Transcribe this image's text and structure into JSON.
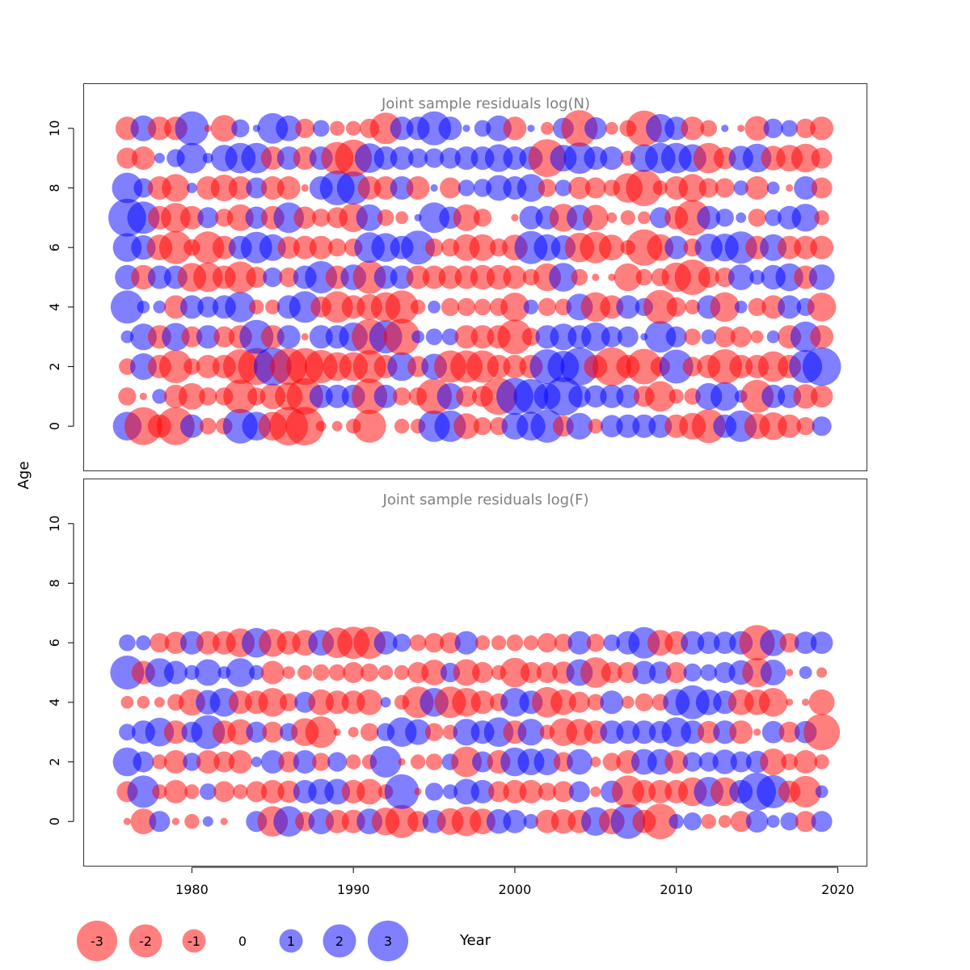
{
  "chart_data": {
    "type": "scatter",
    "xlabel": "Year",
    "ylabel": "Age",
    "colors": {
      "negative": "#ff0000",
      "positive": "#0000ff",
      "opacity": 0.5
    },
    "panels": [
      {
        "title": "Joint sample residuals log(N)",
        "xlim": [
          1973.3,
          2021.8
        ],
        "ylim": [
          -1.5,
          11.5
        ],
        "x_ticks": [],
        "y_ticks": [
          0,
          2,
          4,
          6,
          8,
          10
        ],
        "x": [
          1976,
          1977,
          1978,
          1979,
          1980,
          1981,
          1982,
          1983,
          1984,
          1985,
          1986,
          1987,
          1988,
          1989,
          1990,
          1991,
          1992,
          1993,
          1994,
          1995,
          1996,
          1997,
          1998,
          1999,
          2000,
          2001,
          2002,
          2003,
          2004,
          2005,
          2006,
          2007,
          2008,
          2009,
          2010,
          2011,
          2012,
          2013,
          2014,
          2015,
          2016,
          2017,
          2018,
          2019
        ],
        "ages": [
          0,
          1,
          2,
          3,
          4,
          5,
          6,
          7,
          8,
          9,
          10
        ],
        "residuals": [
          [
            1.5,
            -2.6,
            -1.0,
            -2.6,
            1.0,
            -0.5,
            -0.5,
            2.2,
            1.5,
            -1.5,
            -2.7,
            -2.7,
            -0.2,
            -0.2,
            -0.4,
            -2.0,
            0.0,
            -0.4,
            -0.4,
            1.8,
            1.8,
            -1.2,
            -0.6,
            -0.6,
            1.3,
            1.5,
            2.0,
            -0.8,
            1.3,
            -0.4,
            0.9,
            1.0,
            1.0,
            1.0,
            -1.0,
            -1.3,
            -2.1,
            1.0,
            1.8,
            -1.2,
            -1.4,
            -1.0,
            -0.6,
            0.7
          ],
          [
            -0.6,
            -0.1,
            0.4,
            -1.0,
            -1.3,
            -0.6,
            -0.6,
            -2.1,
            -0.6,
            -1.2,
            -1.4,
            -2.4,
            1.0,
            1.0,
            1.0,
            -2.3,
            1.0,
            -0.6,
            -0.6,
            -2.3,
            1.3,
            -0.8,
            -0.8,
            -2.5,
            2.5,
            2.2,
            1.3,
            2.7,
            0.9,
            0.9,
            1.0,
            1.0,
            -0.8,
            -1.7,
            -0.4,
            -0.5,
            1.3,
            1.5,
            0.3,
            -2.0,
            1.0,
            1.0,
            -1.1,
            -0.9
          ],
          [
            -0.5,
            1.3,
            -1.0,
            -2.0,
            -0.5,
            -1.0,
            -1.0,
            -2.2,
            -2.5,
            2.6,
            -2.5,
            -2.5,
            -2.0,
            -1.5,
            -1.5,
            -2.0,
            -1.0,
            1.5,
            -0.8,
            1.2,
            -1.9,
            -1.9,
            -1.9,
            -1.0,
            -1.0,
            -1.0,
            2.2,
            1.8,
            2.6,
            -1.0,
            -2.7,
            -1.0,
            -2.3,
            -0.7,
            2.1,
            -0.7,
            -1.0,
            -2.2,
            -1.0,
            -1.0,
            -1.7,
            -1.0,
            2.0,
            2.7
          ],
          [
            0.3,
            1.3,
            -1.0,
            1.4,
            -0.8,
            1.0,
            -0.8,
            -1.0,
            2.1,
            -1.0,
            1.0,
            -0.1,
            1.0,
            1.0,
            1.5,
            -2.3,
            2.0,
            -2.4,
            0.3,
            0.5,
            0.5,
            -1.0,
            -1.0,
            -1.0,
            -2.2,
            -0.6,
            1.0,
            1.3,
            1.0,
            1.5,
            0.8,
            0.8,
            0.1,
            1.8,
            0.8,
            -0.5,
            0.4,
            -0.8,
            -0.8,
            -0.3,
            0.3,
            -1.0,
            1.7,
            -1.0
          ],
          [
            2.0,
            0.3,
            0.3,
            -1.0,
            1.0,
            0.8,
            1.0,
            1.7,
            -0.4,
            -0.4,
            1.0,
            1.8,
            -0.8,
            -1.8,
            -1.0,
            -1.2,
            -1.6,
            -2.0,
            -0.4,
            0.3,
            -0.6,
            -0.6,
            -0.5,
            -0.6,
            -1.5,
            0.4,
            -0.6,
            -0.5,
            1.3,
            -1.6,
            -1.0,
            1.0,
            0.6,
            -2.1,
            -0.7,
            -0.4,
            1.0,
            -1.6,
            0.3,
            -0.6,
            -1.0,
            1.0,
            0.6,
            -1.5
          ],
          [
            1.1,
            -1.1,
            1.0,
            1.0,
            -1.5,
            -1.6,
            -1.0,
            -1.8,
            -0.8,
            0.7,
            -0.7,
            1.0,
            1.9,
            -1.0,
            1.2,
            -2.0,
            1.0,
            1.0,
            -1.0,
            -1.0,
            -1.0,
            -1.0,
            -1.1,
            -1.1,
            -1.0,
            -0.5,
            -1.4,
            1.5,
            -0.5,
            -0.1,
            -0.1,
            -1.4,
            -0.5,
            -0.6,
            -1.6,
            -2.3,
            -0.8,
            -0.7,
            1.2,
            0.4,
            1.1,
            1.4,
            -1.0,
            1.2
          ],
          [
            1.5,
            1.1,
            -1.2,
            -2.0,
            -0.5,
            -1.9,
            -1.0,
            1.0,
            1.8,
            1.3,
            -0.9,
            -1.0,
            -1.0,
            -0.6,
            -0.6,
            1.7,
            1.5,
            1.0,
            2.1,
            -0.6,
            -0.6,
            -1.3,
            -1.3,
            -0.6,
            -1.2,
            2.0,
            1.3,
            1.1,
            -1.6,
            -1.8,
            -1.2,
            -0.4,
            -2.4,
            -1.3,
            1.0,
            -0.6,
            1.4,
            1.4,
            1.9,
            -1.0,
            1.3,
            -1.0,
            -1.0,
            -1.0
          ],
          [
            2.6,
            1.9,
            -1.0,
            -1.6,
            -1.0,
            0.8,
            -0.6,
            -1.3,
            0.9,
            -1.0,
            1.7,
            -0.9,
            -0.6,
            -0.8,
            -1.5,
            1.3,
            -0.5,
            -0.3,
            0.1,
            1.7,
            0.9,
            -1.3,
            -0.6,
            0.0,
            -0.1,
            1.0,
            1.0,
            -1.4,
            1.2,
            -1.2,
            -0.2,
            -0.4,
            -0.3,
            0.8,
            -1.0,
            -2.3,
            1.0,
            0.6,
            0.2,
            -0.6,
            0.5,
            1.0,
            1.4,
            -0.4
          ],
          [
            1.7,
            0.7,
            -1.0,
            -1.4,
            0.2,
            -1.0,
            -1.3,
            -1.0,
            0.8,
            -1.0,
            -1.0,
            -0.1,
            1.0,
            2.2,
            2.0,
            -1.0,
            -1.0,
            1.0,
            -1.0,
            0.1,
            -0.8,
            0.5,
            0.6,
            1.2,
            1.0,
            1.4,
            -0.6,
            0.5,
            -0.9,
            -0.8,
            -0.5,
            -1.6,
            -2.4,
            -0.4,
            -1.0,
            -1.4,
            -0.7,
            -0.7,
            0.4,
            -1.0,
            0.3,
            -0.1,
            1.0,
            -0.8
          ],
          [
            -0.8,
            -1.0,
            0.2,
            0.6,
            1.7,
            0.2,
            1.3,
            1.7,
            1.7,
            -1.0,
            1.0,
            -1.0,
            1.0,
            -1.9,
            -2.5,
            1.6,
            1.0,
            1.0,
            0.7,
            0.7,
            0.8,
            1.0,
            1.0,
            1.4,
            1.0,
            1.0,
            -2.6,
            1.3,
            1.8,
            1.0,
            1.0,
            -0.4,
            1.4,
            1.7,
            1.7,
            1.4,
            -1.7,
            -0.9,
            1.1,
            1.5,
            -1.1,
            -1.3,
            -1.5,
            -0.8
          ],
          [
            -1.0,
            1.2,
            -1.0,
            -1.0,
            2.1,
            -0.1,
            -1.3,
            0.6,
            0.1,
            1.7,
            1.2,
            -0.7,
            0.5,
            -0.4,
            -0.4,
            -0.7,
            -1.8,
            1.0,
            1.0,
            2.1,
            1.0,
            0.1,
            0.5,
            1.2,
            -1.0,
            0.1,
            -0.3,
            0.8,
            -2.4,
            0.9,
            -0.3,
            -0.5,
            -2.3,
            1.5,
            1.0,
            -1.0,
            -0.5,
            0.1,
            -0.1,
            -1.1,
            0.7,
            0.5,
            -0.7,
            -1.0
          ]
        ]
      },
      {
        "title": "Joint sample residuals log(F)",
        "xlim": [
          1973.3,
          2021.8
        ],
        "ylim": [
          -1.5,
          11.5
        ],
        "x_ticks": [
          1980,
          1990,
          2000,
          2010,
          2020
        ],
        "y_ticks": [
          0,
          2,
          4,
          6,
          8,
          10
        ],
        "x": [
          1976,
          1977,
          1978,
          1979,
          1980,
          1981,
          1982,
          1983,
          1984,
          1985,
          1986,
          1987,
          1988,
          1989,
          1990,
          1991,
          1992,
          1993,
          1994,
          1995,
          1996,
          1997,
          1998,
          1999,
          2000,
          2001,
          2002,
          2003,
          2004,
          2005,
          2006,
          2007,
          2008,
          2009,
          2010,
          2011,
          2012,
          2013,
          2014,
          2015,
          2016,
          2017,
          2018,
          2019
        ],
        "ages": [
          0,
          1,
          2,
          3,
          4,
          5,
          6
        ],
        "residuals": [
          [
            -0.1,
            -1.2,
            0.8,
            -0.1,
            -0.4,
            0.2,
            -0.1,
            0.0,
            0.8,
            -1.7,
            1.7,
            -0.7,
            1.2,
            -1.0,
            -1.0,
            1.2,
            -1.4,
            -2.0,
            -0.8,
            1.0,
            -1.3,
            -1.6,
            -1.2,
            1.1,
            1.0,
            0.4,
            -1.0,
            -1.1,
            -1.0,
            1.5,
            -1.2,
            2.2,
            -1.0,
            -2.3,
            0.4,
            0.6,
            -0.4,
            -0.3,
            -0.8,
            0.9,
            0.3,
            0.6,
            -0.8,
            0.8
          ],
          [
            -0.8,
            1.9,
            -0.4,
            -1.0,
            -0.4,
            0.5,
            -0.8,
            -0.4,
            -0.8,
            -1.0,
            -0.9,
            1.0,
            1.2,
            1.2,
            -1.0,
            -1.2,
            -0.4,
            2.2,
            -0.1,
            0.6,
            0.4,
            1.2,
            1.0,
            -0.8,
            -1.0,
            -1.0,
            -0.6,
            -0.8,
            0.8,
            -0.2,
            0.9,
            -1.9,
            -1.0,
            -1.0,
            -1.0,
            -1.5,
            1.6,
            -1.5,
            1.0,
            2.6,
            2.0,
            -0.9,
            -1.8,
            0.3
          ],
          [
            1.5,
            0.8,
            -0.4,
            -1.0,
            0.6,
            -1.0,
            -0.8,
            -1.0,
            0.2,
            1.0,
            -0.8,
            1.0,
            -0.6,
            0.7,
            -0.4,
            -0.4,
            1.8,
            -0.1,
            -0.4,
            -0.5,
            0.5,
            -1.7,
            0.8,
            -1.0,
            1.5,
            1.3,
            1.3,
            -0.7,
            1.2,
            -0.2,
            -0.6,
            -1.0,
            1.2,
            1.2,
            -1.0,
            0.7,
            0.7,
            1.1,
            0.8,
            0.9,
            -1.3,
            -0.5,
            -1.0,
            -0.4
          ],
          [
            0.5,
            1.0,
            1.5,
            -1.0,
            0.8,
            2.1,
            -1.0,
            -1.2,
            0.8,
            -0.8,
            0.6,
            -1.4,
            -1.8,
            -0.1,
            -0.2,
            -0.6,
            0.6,
            1.6,
            1.2,
            -0.6,
            -0.4,
            1.3,
            1.0,
            1.6,
            -1.0,
            1.3,
            -0.4,
            -1.4,
            -1.3,
            -1.0,
            1.0,
            1.0,
            1.0,
            0.9,
            1.6,
            1.0,
            -0.9,
            1.0,
            -1.0,
            -0.1,
            0.9,
            -0.8,
            0.9,
            -2.4
          ],
          [
            -0.3,
            -0.3,
            -0.2,
            -0.5,
            -1.3,
            1.1,
            1.5,
            -1.0,
            -1.0,
            -1.5,
            -0.6,
            0.8,
            -1.2,
            -1.0,
            -1.0,
            -1.2,
            0.2,
            -0.4,
            -1.8,
            1.5,
            -1.8,
            -1.5,
            -1.0,
            -0.6,
            1.5,
            1.0,
            -1.7,
            -1.2,
            -0.8,
            -0.5,
            1.0,
            -0.3,
            -0.6,
            -0.5,
            1.3,
            2.1,
            1.2,
            1.0,
            -1.2,
            -1.2,
            -1.5,
            -0.1,
            -0.1,
            -1.2
          ],
          [
            2.1,
            -1.0,
            1.5,
            1.0,
            0.4,
            1.3,
            0.3,
            1.5,
            0.4,
            -1.0,
            -0.3,
            -0.4,
            -0.5,
            -0.5,
            -0.8,
            -0.6,
            -0.4,
            -0.4,
            -0.8,
            -1.2,
            0.7,
            -1.3,
            -0.8,
            -0.4,
            -1.6,
            -0.8,
            -0.8,
            -0.9,
            1.3,
            -1.7,
            -0.8,
            -0.8,
            1.0,
            0.9,
            -0.8,
            0.6,
            0.5,
            0.8,
            1.1,
            -1.6,
            1.2,
            -0.1,
            0.3,
            -0.2
          ],
          [
            0.5,
            0.4,
            -0.7,
            -0.9,
            1.0,
            -1.0,
            -1.0,
            -1.5,
            1.6,
            -1.4,
            -1.0,
            -1.2,
            1.2,
            -1.7,
            -1.9,
            -1.9,
            1.0,
            0.6,
            -0.5,
            -0.7,
            -0.8,
            1.0,
            -0.4,
            -0.4,
            -0.5,
            -0.4,
            -0.7,
            -0.6,
            1.0,
            -0.6,
            0.5,
            1.0,
            1.8,
            -1.2,
            -1.0,
            1.0,
            0.9,
            0.9,
            1.0,
            -2.3,
            1.3,
            -0.7,
            0.9,
            0.9
          ]
        ]
      }
    ],
    "legend": {
      "values": [
        -3,
        -2,
        -1,
        0,
        1,
        2,
        3
      ],
      "labels": [
        "-3",
        "-2",
        "-1",
        "0",
        "1",
        "2",
        "3"
      ],
      "position": "bottom-left"
    }
  }
}
